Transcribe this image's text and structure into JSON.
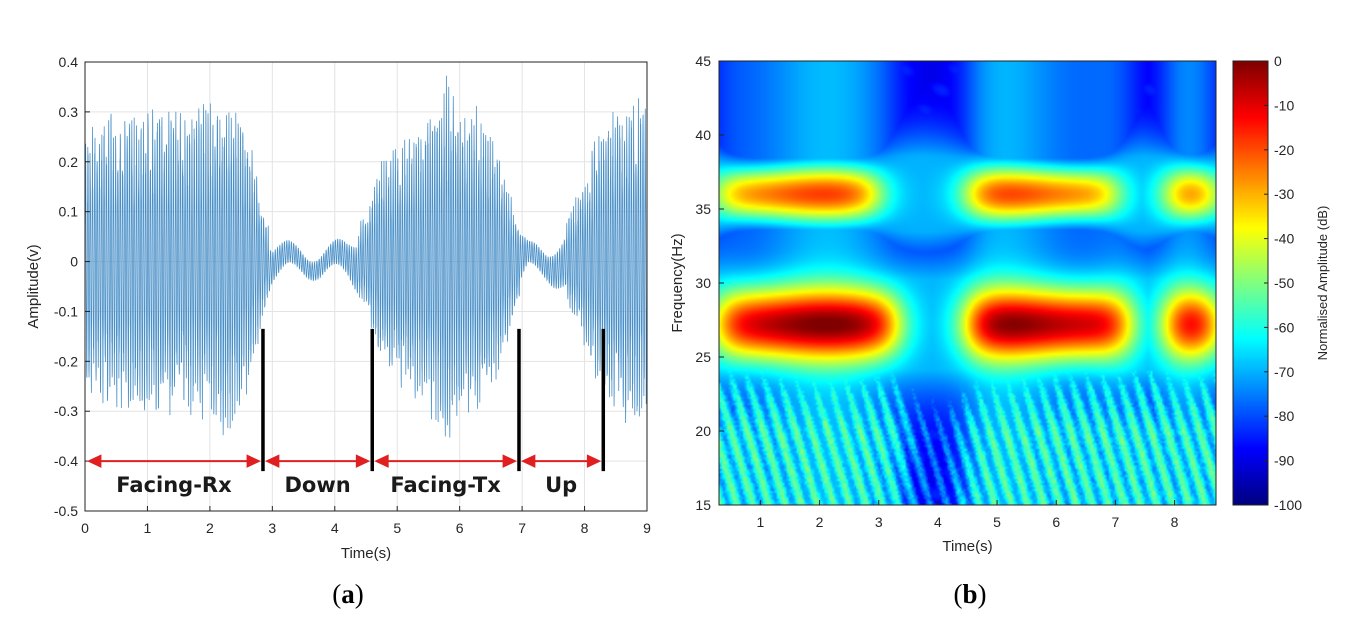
{
  "chart_data": [
    {
      "type": "line",
      "panel_label": "a",
      "xlabel": "Time(s)",
      "ylabel": "Amplitude(v)",
      "xlim": [
        0,
        9
      ],
      "ylim": [
        -0.5,
        0.4
      ],
      "xticks": [
        "0",
        "1",
        "2",
        "3",
        "4",
        "5",
        "6",
        "7",
        "8",
        "9"
      ],
      "yticks": [
        "0.4",
        "0.3",
        "0.2",
        "0.1",
        "0",
        "-0.1",
        "-0.2",
        "-0.3",
        "-0.4",
        "-0.5"
      ],
      "grid": true,
      "color": "#4a90c8",
      "envelope": {
        "t": [
          0,
          0.3,
          0.8,
          1.2,
          1.6,
          2.0,
          2.3,
          2.6,
          2.85,
          3.0,
          3.3,
          3.6,
          3.9,
          4.2,
          4.5,
          4.7,
          5.0,
          5.3,
          5.6,
          5.8,
          6.0,
          6.3,
          6.6,
          6.9,
          7.1,
          7.4,
          7.7,
          8.0,
          8.3,
          8.6,
          9.0
        ],
        "amplitude": [
          0.27,
          0.3,
          0.3,
          0.33,
          0.3,
          0.34,
          0.36,
          0.28,
          0.12,
          0.05,
          0.035,
          0.03,
          0.035,
          0.05,
          0.1,
          0.2,
          0.25,
          0.28,
          0.34,
          0.38,
          0.3,
          0.32,
          0.25,
          0.1,
          0.035,
          0.04,
          0.08,
          0.18,
          0.3,
          0.32,
          0.35
        ]
      },
      "segments": [
        {
          "label": "Facing-Rx",
          "start": 0.0,
          "end": 2.85
        },
        {
          "label": "Down",
          "start": 2.85,
          "end": 4.6
        },
        {
          "label": "Facing-Tx",
          "start": 4.6,
          "end": 6.95
        },
        {
          "label": "Up",
          "start": 6.95,
          "end": 8.3
        }
      ],
      "markers": [
        2.85,
        4.6,
        6.95,
        8.3
      ],
      "arrow_y": -0.4,
      "arrow_color": "#e02020"
    },
    {
      "type": "heatmap",
      "panel_label": "b",
      "xlabel": "Time(s)",
      "ylabel": "Frequency(Hz)",
      "xlim": [
        0.3,
        8.7
      ],
      "ylim": [
        15,
        45
      ],
      "xticks": [
        "1",
        "2",
        "3",
        "4",
        "5",
        "6",
        "7",
        "8"
      ],
      "yticks": [
        "45",
        "40",
        "35",
        "30",
        "25",
        "20",
        "15"
      ],
      "colorbar": {
        "label": "Normalised Amplitude (dB)",
        "range": [
          -100,
          0
        ],
        "ticks": [
          "0",
          "-10",
          "-20",
          "-30",
          "-40",
          "-50",
          "-60",
          "-70",
          "-80",
          "-90",
          "-100"
        ],
        "colormap": "jet"
      },
      "bands": [
        {
          "freq_hz": 27.2,
          "width_hz": 2.4,
          "peak_db": -3,
          "active_intervals": [
            [
              0.3,
              3.3
            ],
            [
              4.5,
              7.2
            ],
            [
              7.9,
              8.7
            ]
          ]
        },
        {
          "freq_hz": 36.0,
          "width_hz": 2.0,
          "peak_db": -22,
          "active_intervals": [
            [
              0.3,
              3.0
            ],
            [
              4.5,
              7.0
            ],
            [
              7.9,
              8.7
            ]
          ]
        }
      ],
      "background_db": -90,
      "low_freq_noise_db": -62
    }
  ]
}
